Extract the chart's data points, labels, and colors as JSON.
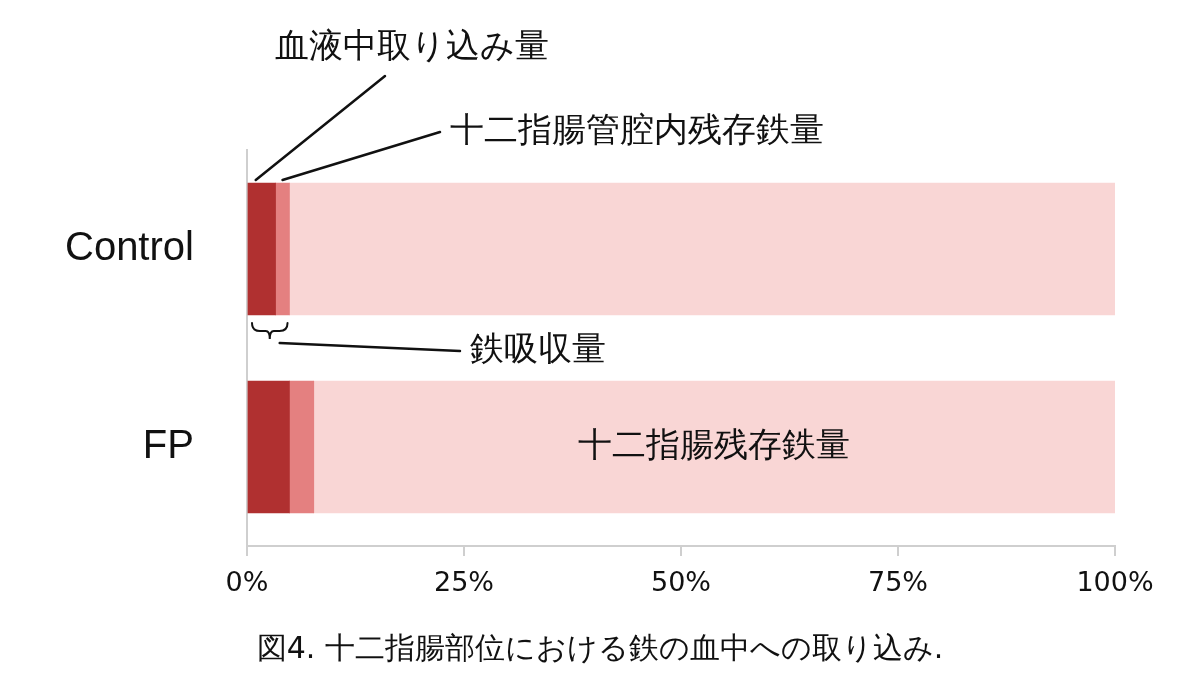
{
  "chart_data": {
    "type": "bar",
    "orientation": "horizontal",
    "stacked": true,
    "categories": [
      "Control",
      "FP"
    ],
    "series": [
      {
        "name": "血液中取り込み量",
        "color": "#b03030",
        "values": [
          3.3,
          4.9
        ]
      },
      {
        "name": "十二指腸管腔内残存鉄量",
        "color": "#e48080",
        "values": [
          1.6,
          2.8
        ]
      },
      {
        "name": "十二指腸残存鉄量",
        "color": "#f9d6d5",
        "values": [
          95.1,
          92.3
        ]
      }
    ],
    "xlim": [
      0,
      100
    ],
    "xticks": [
      {
        "value": 0,
        "label": "0%"
      },
      {
        "value": 25,
        "label": "25%"
      },
      {
        "value": 50,
        "label": "50%"
      },
      {
        "value": 75,
        "label": "75%"
      },
      {
        "value": 100,
        "label": "100%"
      }
    ],
    "grid": false,
    "legend": false,
    "annotations": [
      "鉄吸収量",
      "図4. 十二指腸部位における鉄の血中への取り込み."
    ]
  }
}
